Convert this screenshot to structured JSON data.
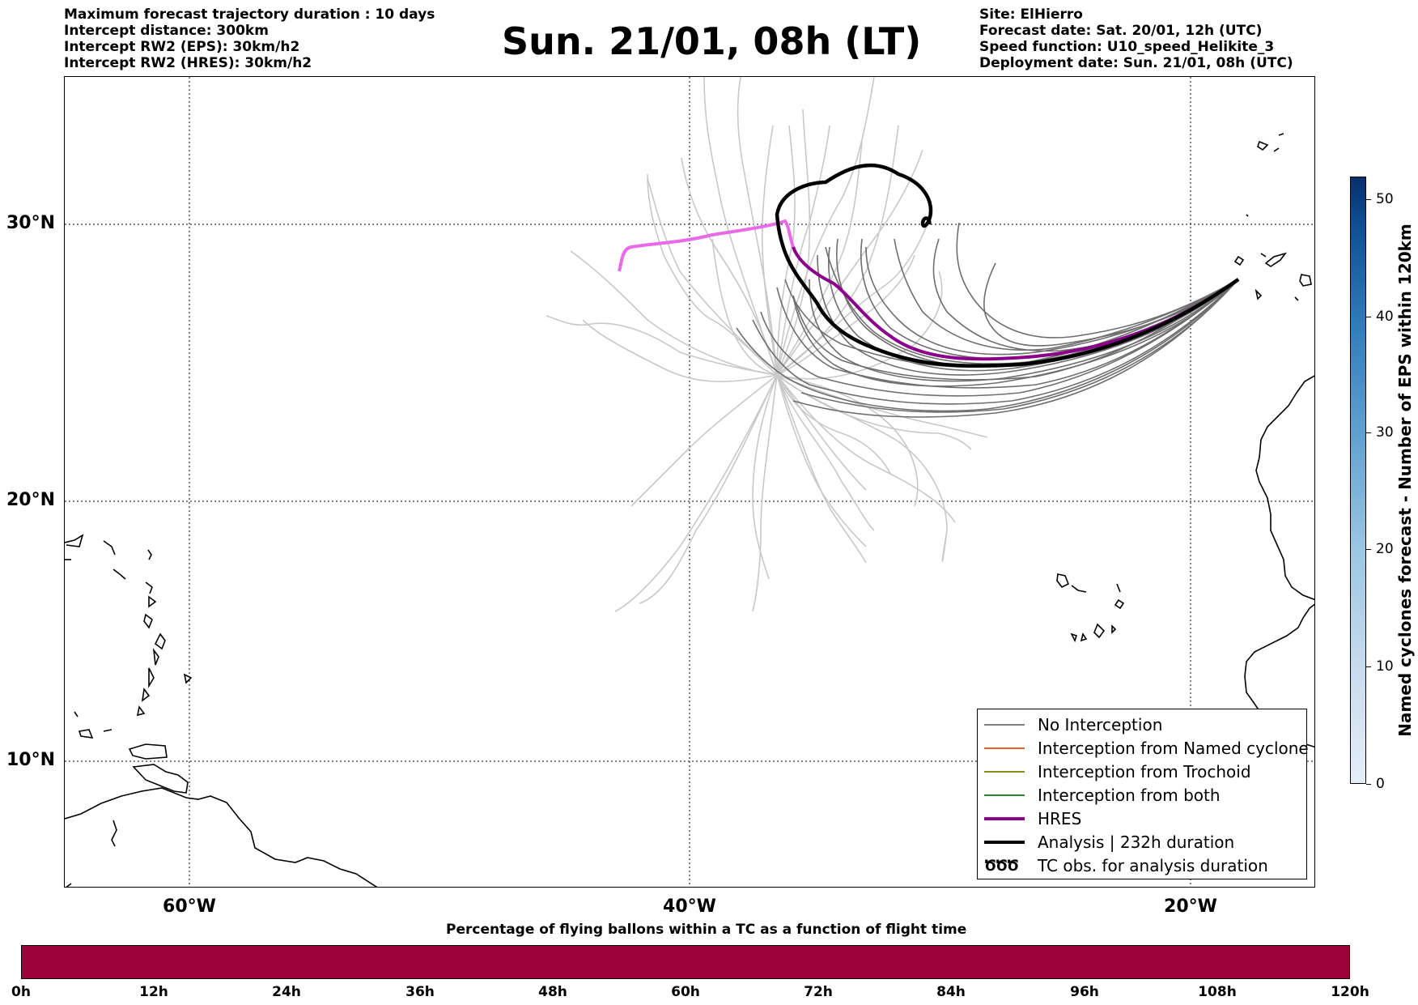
{
  "header": {
    "left_lines": [
      "Maximum forecast trajectory duration : 10 days",
      "Intercept distance: 300km",
      "Intercept RW2 (EPS):  30km/h2",
      "Intercept RW2 (HRES): 30km/h2"
    ],
    "title": "Sun. 21/01, 08h (LT)",
    "right_lines": [
      "Site: ElHierro",
      "Forecast date: Sat. 20/01, 12h (UTC)",
      "Speed function: U10_speed_Helikite_3",
      "Deployment date: Sun. 21/01, 08h (UTC)"
    ]
  },
  "map": {
    "lat_labels": [
      "30°N",
      "20°N",
      "10°N"
    ],
    "lon_labels": [
      "60°W",
      "40°W",
      "20°W"
    ]
  },
  "legend": {
    "items": [
      {
        "label": "No Interception",
        "color": "#808080",
        "kind": "line"
      },
      {
        "label": "Interception from Named cyclone",
        "color": "#e8602a",
        "kind": "line"
      },
      {
        "label": "Interception from Trochoid",
        "color": "#8b8b1a",
        "kind": "line"
      },
      {
        "label": "Interception from both",
        "color": "#2a8a2a",
        "kind": "line"
      },
      {
        "label": "HRES",
        "color": "#8b008b",
        "kind": "thick"
      },
      {
        "label": "Analysis | 232h duration",
        "color": "#000000",
        "kind": "thick"
      },
      {
        "label": "TC obs. for analysis duration",
        "color": "#000000",
        "kind": "symbol",
        "symbol": "ԾԾԾ"
      }
    ]
  },
  "colorbar": {
    "label": "Named cyclones forecast - Number of EPS within 120km",
    "ticks": [
      "0",
      "10",
      "20",
      "30",
      "40",
      "50"
    ]
  },
  "bottom_bar": {
    "title": "Percentage of flying ballons within a TC as a function of flight time",
    "ticks": [
      "0h",
      "12h",
      "24h",
      "36h",
      "48h",
      "60h",
      "72h",
      "84h",
      "96h",
      "108h",
      "120h"
    ],
    "fill_color": "#9e003a"
  }
}
